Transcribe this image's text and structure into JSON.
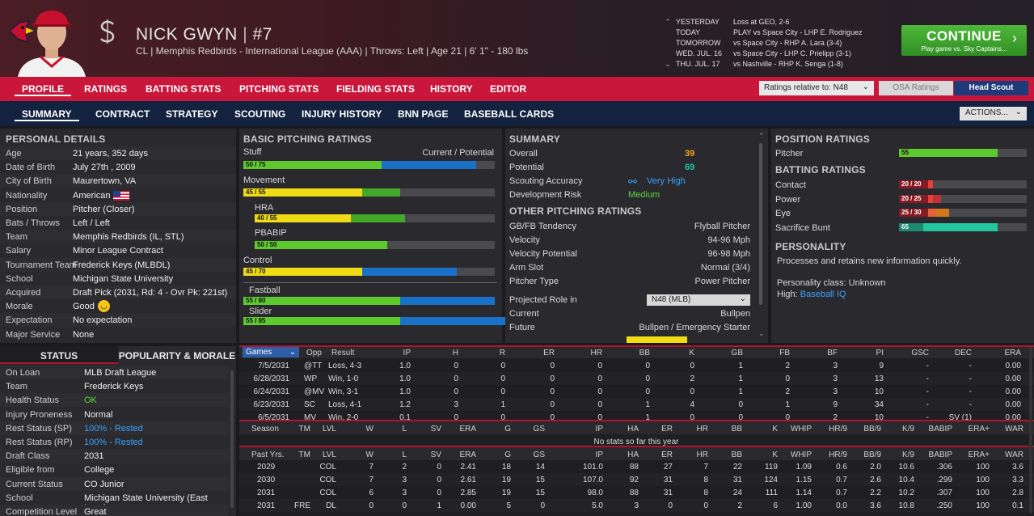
{
  "player": {
    "name": "NICK GWYN",
    "number_sep": "|",
    "number": "#7",
    "subtitle": "CL | Memphis Redbirds - International League (AAA)  |  Throws: Left  |  Age 21  |  6' 1\" - 180 lbs"
  },
  "schedule": [
    {
      "day": "YESTERDAY",
      "text": "Loss at GEO, 2-6"
    },
    {
      "day": "TODAY",
      "text": "PLAY vs Space City - LHP E. Rodriguez"
    },
    {
      "day": "TOMORROW",
      "text": "vs Space City - RHP A. Lara (3-4)"
    },
    {
      "day": "WED. JUL. 16",
      "text": "vs Space City - LHP C. Prielipp (3-1)"
    },
    {
      "day": "THU. JUL. 17",
      "text": "vs Nashville - RHP K. Senga (1-8)"
    }
  ],
  "continue": {
    "label": "CONTINUE",
    "sub": "Play game vs. Sky Captains..."
  },
  "tabs_main": [
    "PROFILE",
    "RATINGS",
    "BATTING STATS",
    "PITCHING STATS",
    "FIELDING STATS",
    "HISTORY",
    "EDITOR"
  ],
  "ratings_relative": "Ratings relative to: N48",
  "osa_label": "OSA Ratings",
  "head_scout": "Head Scout",
  "tabs_sub": [
    "SUMMARY",
    "CONTRACT",
    "STRATEGY",
    "SCOUTING",
    "INJURY HISTORY",
    "BNN PAGE",
    "BASEBALL CARDS"
  ],
  "actions_label": "ACTIONS...",
  "personal": {
    "title": "PERSONAL DETAILS",
    "rows": [
      {
        "k": "Age",
        "v": "21 years, 352 days"
      },
      {
        "k": "Date of Birth",
        "v": "July 27th , 2009"
      },
      {
        "k": "City of Birth",
        "v": "Maurertown, VA"
      },
      {
        "k": "Nationality",
        "v": "American"
      },
      {
        "k": "Position",
        "v": "Pitcher (Closer)"
      },
      {
        "k": "Bats / Throws",
        "v": "Left / Left"
      },
      {
        "k": "Team",
        "v": "Memphis Redbirds (IL, STL)"
      },
      {
        "k": "Salary",
        "v": "Minor League Contract"
      },
      {
        "k": "Tournament Team",
        "v": "Frederick Keys (MLBDL)"
      },
      {
        "k": "School",
        "v": "Michigan State University"
      },
      {
        "k": "Acquired",
        "v": "Draft Pick (2031, Rd: 4 - Ovr Pk: 221st)"
      },
      {
        "k": "Morale",
        "v": "Good"
      },
      {
        "k": "Expectation",
        "v": "No expectation"
      },
      {
        "k": "Major Service",
        "v": "None"
      }
    ]
  },
  "status": {
    "tab1": "STATUS",
    "tab2": "POPULARITY & MORALE",
    "rows": [
      {
        "k": "On Loan",
        "v": "MLB Draft League",
        "color": "#efefef"
      },
      {
        "k": "Team",
        "v": "Frederick Keys",
        "color": "#efefef"
      },
      {
        "k": "Health Status",
        "v": "OK",
        "color": "#5fd43a"
      },
      {
        "k": "Injury Proneness",
        "v": "Normal",
        "color": "#efefef"
      },
      {
        "k": "Rest Status (SP)",
        "v": "100% - Rested",
        "color": "#3aa0ff"
      },
      {
        "k": "Rest Status (RP)",
        "v": "100% - Rested",
        "color": "#3aa0ff"
      },
      {
        "k": "Draft Class",
        "v": "2031",
        "color": "#efefef"
      },
      {
        "k": "Eligible from",
        "v": "College",
        "color": "#efefef"
      },
      {
        "k": "Current Status",
        "v": "CO Junior",
        "color": "#efefef"
      },
      {
        "k": "School",
        "v": "Michigan State University (East Lansing",
        "color": "#efefef"
      },
      {
        "k": "Competition Level",
        "v": "Great",
        "color": "#efefef"
      }
    ]
  },
  "basic": {
    "title": "BASIC PITCHING RATINGS",
    "legend": "Current / Potential",
    "items": [
      {
        "name": "Stuff",
        "label": "50 / 75",
        "cur": 50,
        "pot": 75,
        "color": "#5ec82f"
      },
      {
        "name": "Movement",
        "label": "45 / 55",
        "cur": 45,
        "pot": 55,
        "color": "#f0dc14"
      },
      {
        "name": "HRA",
        "label": "40 / 55",
        "cur": 40,
        "pot": 55,
        "color": "#f0dc14"
      },
      {
        "name": "PBABIP",
        "label": "50 / 50",
        "cur": 50,
        "pot": 50,
        "color": "#5ec82f"
      },
      {
        "name": "Control",
        "label": "45 / 70",
        "cur": 45,
        "pot": 70,
        "color": "#f0dc14"
      },
      {
        "name": "Fastball",
        "label": "55 / 80",
        "cur": 55,
        "pot": 80,
        "color": "#5ec82f"
      },
      {
        "name": "Slider",
        "label": "55 / 85",
        "cur": 55,
        "pot": 85,
        "color": "#5ec82f"
      }
    ]
  },
  "summary": {
    "title": "SUMMARY",
    "overall_k": "Overall",
    "overall": "39",
    "potential_k": "Potential",
    "potential": "69",
    "acc_k": "Scouting Accuracy",
    "acc": "Very High",
    "risk_k": "Development Risk",
    "risk": "Medium"
  },
  "other": {
    "title": "OTHER PITCHING RATINGS",
    "rows": [
      {
        "k": "GB/FB Tendency",
        "v": "Flyball Pitcher"
      },
      {
        "k": "Velocity",
        "v": "94-96 Mph"
      },
      {
        "k": "Velocity Potential",
        "v": "96-98 Mph"
      },
      {
        "k": "Arm Slot",
        "v": "Normal (3/4)"
      },
      {
        "k": "Pitcher Type",
        "v": "Power Pitcher"
      }
    ],
    "role_k": "Projected Role in",
    "role_dd": "N48 (MLB)",
    "current_k": "Current",
    "current": "Bullpen",
    "future_k": "Future",
    "future": "Bullpen / Emergency Starter"
  },
  "position": {
    "title": "POSITION RATINGS",
    "rows": [
      {
        "k": "Pitcher",
        "label": "55",
        "val": 55,
        "color": "#5ec82f"
      }
    ]
  },
  "batting": {
    "title": "BATTING RATINGS",
    "rows": [
      {
        "k": "Contact",
        "label": "20 / 20",
        "cur": 20,
        "pot": 20,
        "color": "#e8403a"
      },
      {
        "k": "Power",
        "label": "20 / 25",
        "cur": 20,
        "pot": 25,
        "color": "#e8403a"
      },
      {
        "k": "Eye",
        "label": "25 / 30",
        "cur": 25,
        "pot": 30,
        "color": "#e8603a"
      },
      {
        "k": "Sacrifice Bunt",
        "label": "65",
        "cur": 65,
        "pot": 65,
        "color": "#22c7a0"
      }
    ]
  },
  "personality": {
    "title": "PERSONALITY",
    "text": "Processes and retains new information quickly.",
    "class_text": "Personality class: Unknown",
    "high_k": "High:",
    "high_v": "Baseball IQ"
  },
  "games": {
    "sel": "Games",
    "headers": [
      "Opp",
      "Result",
      "IP",
      "H",
      "R",
      "ER",
      "HR",
      "BB",
      "K",
      "GB",
      "FB",
      "BF",
      "PI",
      "GSC",
      "DEC",
      "ERA"
    ],
    "rows": [
      [
        "7/5/2031",
        "@TT",
        "Loss, 4-3",
        "1.0",
        "0",
        "0",
        "0",
        "0",
        "0",
        "0",
        "1",
        "2",
        "3",
        "9",
        "-",
        "-",
        "0.00"
      ],
      [
        "6/28/2031",
        "WP",
        "Win, 1-0",
        "1.0",
        "0",
        "0",
        "0",
        "0",
        "0",
        "2",
        "1",
        "0",
        "3",
        "13",
        "-",
        "-",
        "0.00"
      ],
      [
        "6/24/2031",
        "@MV",
        "Win, 3-1",
        "1.0",
        "0",
        "0",
        "0",
        "0",
        "0",
        "0",
        "1",
        "2",
        "3",
        "10",
        "-",
        "-",
        "0.00"
      ],
      [
        "6/23/2031",
        "SC",
        "Loss, 4-1",
        "1.2",
        "3",
        "1",
        "0",
        "0",
        "1",
        "4",
        "0",
        "1",
        "9",
        "34",
        "-",
        "-",
        "0.00"
      ],
      [
        "6/5/2031",
        "MV",
        "Win, 2-0",
        "0.1",
        "0",
        "0",
        "0",
        "0",
        "1",
        "0",
        "0",
        "0",
        "2",
        "10",
        "-",
        "SV (1)",
        "0.00"
      ]
    ]
  },
  "season": {
    "headers": [
      "Season",
      "TM",
      "LVL",
      "W",
      "L",
      "SV",
      "ERA",
      "G",
      "GS",
      "IP",
      "HA",
      "ER",
      "HR",
      "BB",
      "K",
      "WHIP",
      "HR/9",
      "BB/9",
      "K/9",
      "BABIP",
      "ERA+",
      "WAR"
    ],
    "empty": "No stats so far this year"
  },
  "past": {
    "headers": [
      "Past Yrs.",
      "TM",
      "LVL",
      "W",
      "L",
      "SV",
      "ERA",
      "G",
      "GS",
      "IP",
      "HA",
      "ER",
      "HR",
      "BB",
      "K",
      "WHIP",
      "HR/9",
      "BB/9",
      "K/9",
      "BABIP",
      "ERA+",
      "WAR"
    ],
    "rows": [
      [
        "2029",
        "",
        "COL",
        "7",
        "2",
        "0",
        "2.41",
        "18",
        "14",
        "101.0",
        "88",
        "27",
        "7",
        "22",
        "119",
        "1.09",
        "0.6",
        "2.0",
        "10.6",
        ".306",
        "100",
        "3.6"
      ],
      [
        "2030",
        "",
        "COL",
        "7",
        "3",
        "0",
        "2.61",
        "19",
        "15",
        "107.0",
        "92",
        "31",
        "8",
        "31",
        "124",
        "1.15",
        "0.7",
        "2.6",
        "10.4",
        ".299",
        "100",
        "3.3"
      ],
      [
        "2031",
        "",
        "COL",
        "6",
        "3",
        "0",
        "2.85",
        "19",
        "15",
        "98.0",
        "88",
        "31",
        "8",
        "24",
        "111",
        "1.14",
        "0.7",
        "2.2",
        "10.2",
        ".307",
        "100",
        "2.8"
      ],
      [
        "2031",
        "FRE",
        "DL",
        "0",
        "0",
        "1",
        "0.00",
        "5",
        "0",
        "5.0",
        "3",
        "0",
        "0",
        "2",
        "6",
        "1.00",
        "0.0",
        "3.6",
        "10.8",
        ".250",
        "100",
        "0.1"
      ]
    ]
  },
  "colors": {
    "accent_red": "#c8173a",
    "navy": "#13233f",
    "green": "#5ec82f",
    "yellow": "#f0dc14",
    "blue": "#1a72c8"
  }
}
